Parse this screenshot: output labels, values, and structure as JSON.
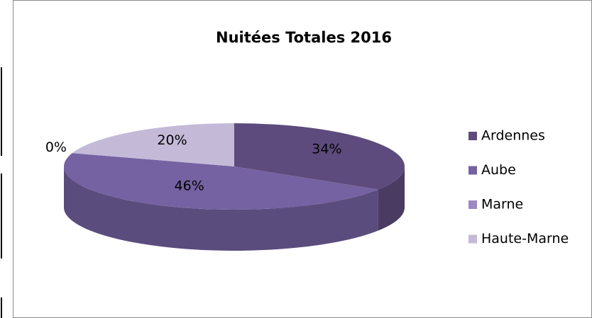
{
  "chart_data": {
    "type": "pie",
    "title": "Nuitées Totales 2016",
    "categories": [
      "Ardennes",
      "Aube",
      "Marne",
      "Haute-Marne"
    ],
    "values": [
      34,
      46,
      0,
      20
    ],
    "value_labels": [
      "34%",
      "46%",
      "0%",
      "20%"
    ],
    "colors": [
      "#5d4b7d",
      "#7562a2",
      "#9c89c1",
      "#c4bad8"
    ],
    "legend": "right"
  }
}
